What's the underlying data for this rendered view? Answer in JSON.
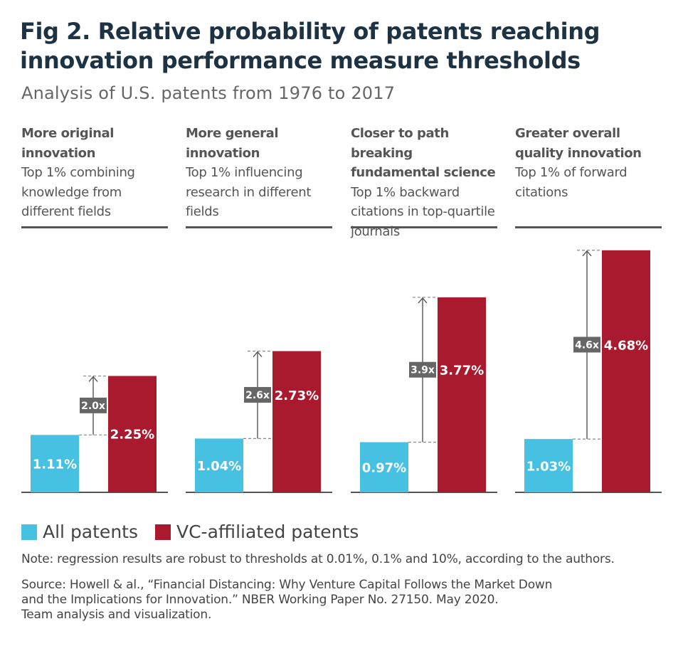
{
  "title": "Fig 2. Relative probability of patents reaching innovation performance measure thresholds",
  "subtitle": "Analysis of U.S. patents from 1976 to 2017",
  "colors": {
    "all": "#47c1e1",
    "vc": "#a91a2e",
    "badge": "#666666",
    "text": "#1d3344"
  },
  "chart_data": {
    "type": "bar",
    "ylabel": "",
    "ylim": [
      0,
      5
    ],
    "grid": false,
    "legend_placement": "bottom-left",
    "panels": [
      {
        "measure": "More original innovation",
        "description": "Top 1% combining knowledge from different fields",
        "values": [
          1.11,
          2.25
        ],
        "value_labels": [
          "1.11%",
          "2.25%"
        ],
        "ratio_label": "2.0x"
      },
      {
        "measure": "More general innovation",
        "description": "Top 1% influencing research in different fields",
        "values": [
          1.04,
          2.73
        ],
        "value_labels": [
          "1.04%",
          "2.73%"
        ],
        "ratio_label": "2.6x"
      },
      {
        "measure": "Closer to path breaking fundamental science",
        "description": "Top 1% backward citations in top-quartile journals",
        "values": [
          0.97,
          3.77
        ],
        "value_labels": [
          "0.97%",
          "3.77%"
        ],
        "ratio_label": "3.9x"
      },
      {
        "measure": "Greater overall quality innovation",
        "description": "Top 1% of forward citations",
        "values": [
          1.03,
          4.68
        ],
        "value_labels": [
          "1.03%",
          "4.68%"
        ],
        "ratio_label": "4.6x"
      }
    ],
    "series": [
      {
        "name": "All patents",
        "color": "#47c1e1"
      },
      {
        "name": "VC-affiliated patents",
        "color": "#a91a2e"
      }
    ]
  },
  "note": "Note: regression results are robust to thresholds at 0.01%, 0.1% and 10%, according to the authors.",
  "source": {
    "line1": "Source: Howell & al., “Financial Distancing: Why Venture Capital Follows the Market Down",
    "line2": "and the Implications for Innovation.” NBER Working Paper No. 27150. May 2020.",
    "line3": "Team analysis and visualization."
  }
}
